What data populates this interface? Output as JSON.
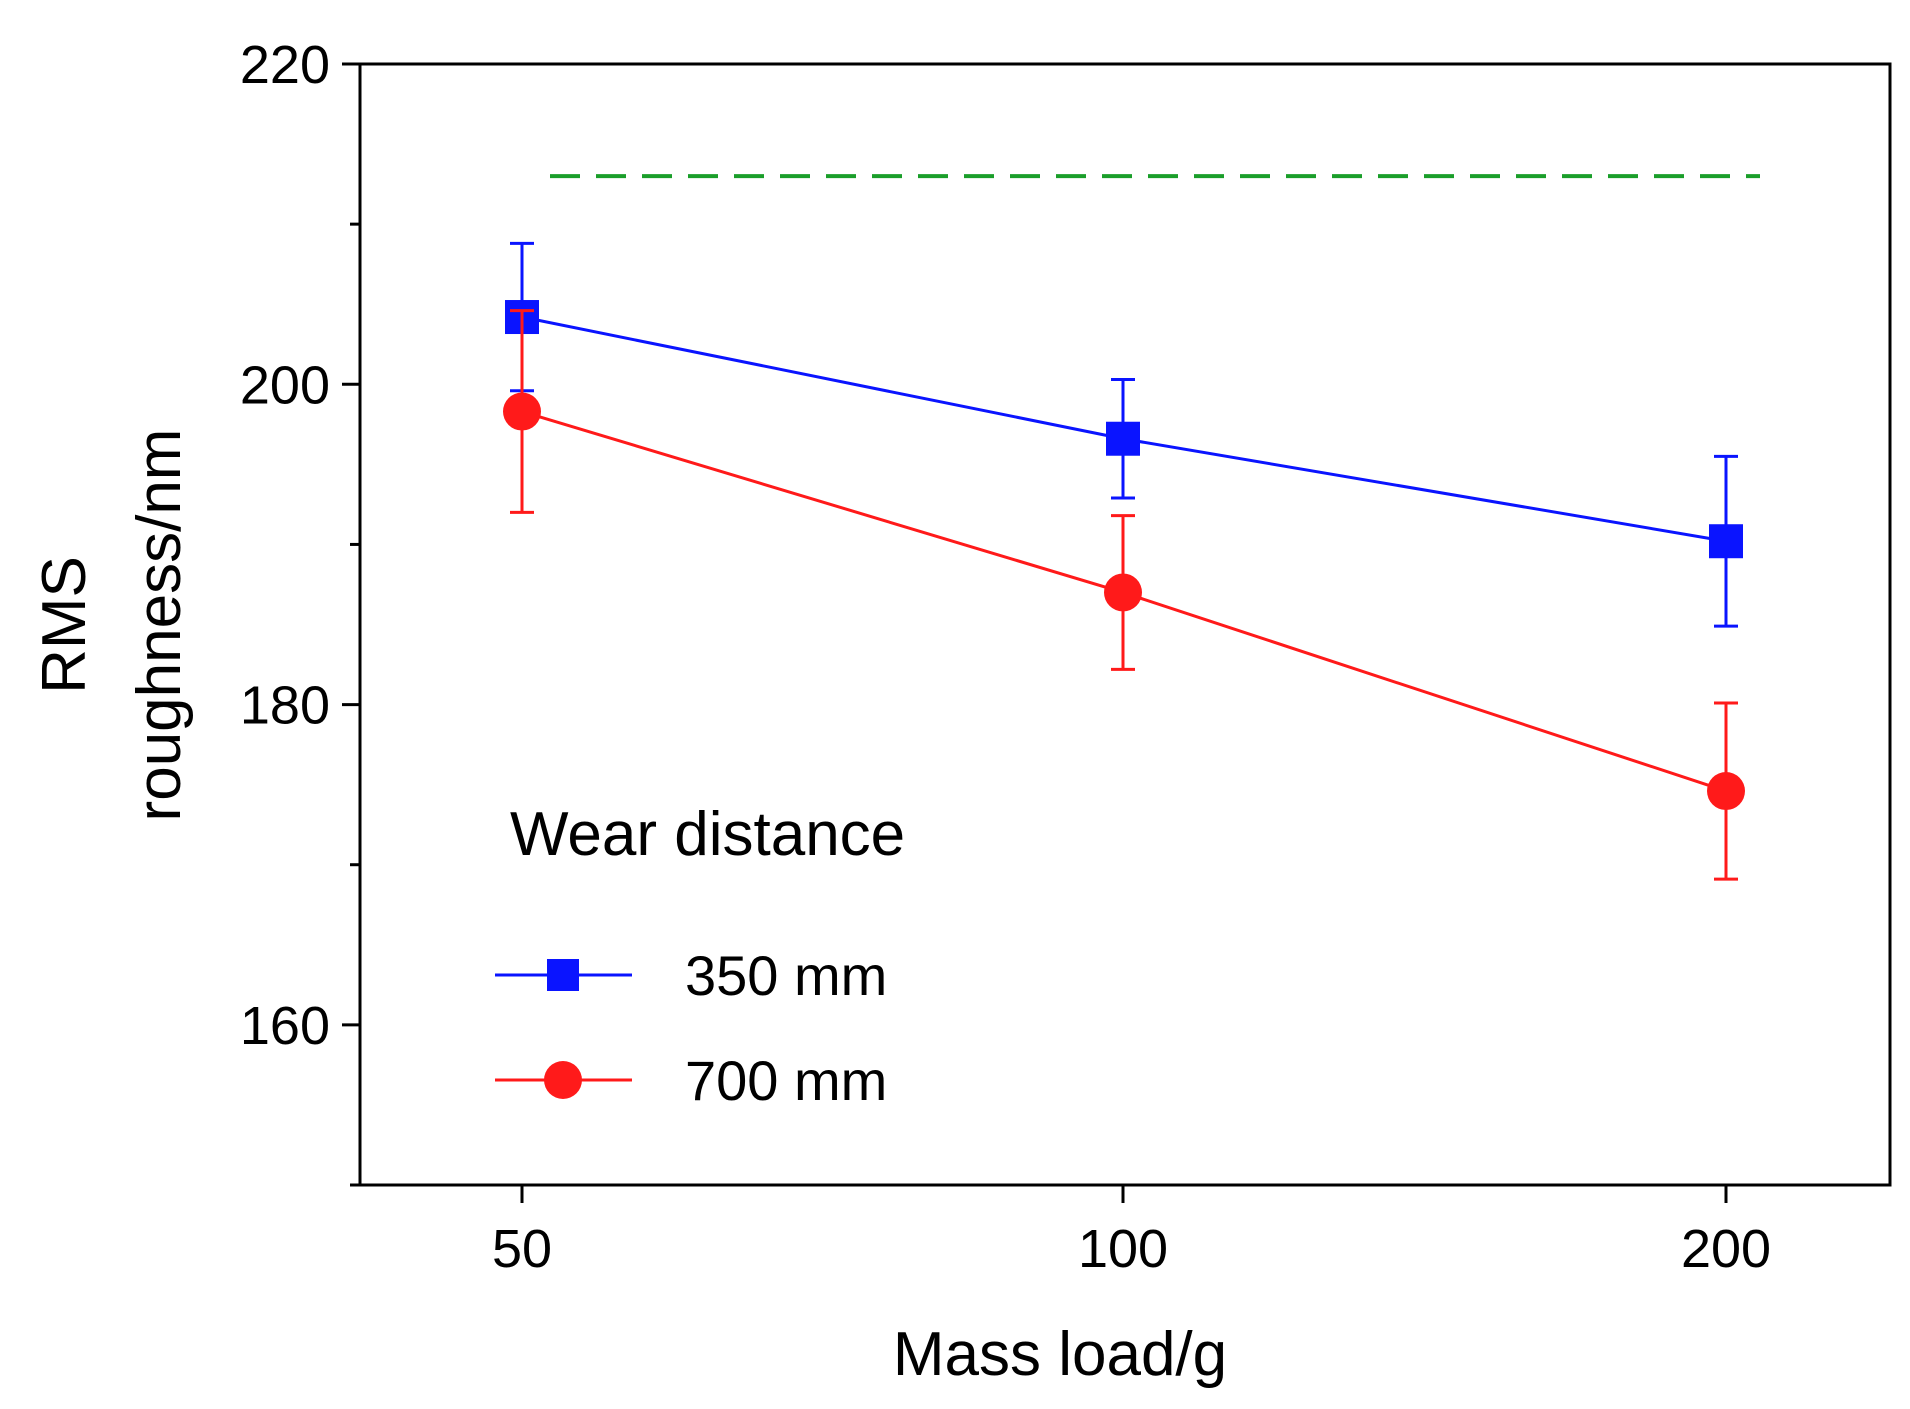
{
  "chart_data": {
    "type": "line",
    "xlabel": "Mass load/g",
    "ylabel_line1": "RMS",
    "ylabel_line2": "roughness/nm",
    "categories": [
      "50",
      "100",
      "200"
    ],
    "ylim": [
      150,
      220
    ],
    "yticks": [
      160,
      180,
      200,
      220
    ],
    "y_minor_ticks": [
      150,
      170,
      190,
      210
    ],
    "reference_line": {
      "y": 213,
      "color": "#1a9e2a",
      "style": "dashed"
    },
    "legend": {
      "title": "Wear distance",
      "position": "lower-left"
    },
    "series": [
      {
        "name": "350 mm",
        "color": "#0a14ff",
        "marker": "square",
        "values": [
          204.2,
          196.6,
          190.2
        ],
        "error": [
          4.6,
          3.7,
          5.3
        ]
      },
      {
        "name": "700 mm",
        "color": "#ff1a1a",
        "marker": "circle",
        "values": [
          198.3,
          187.0,
          174.6
        ],
        "error": [
          6.3,
          4.8,
          5.5
        ]
      }
    ]
  }
}
